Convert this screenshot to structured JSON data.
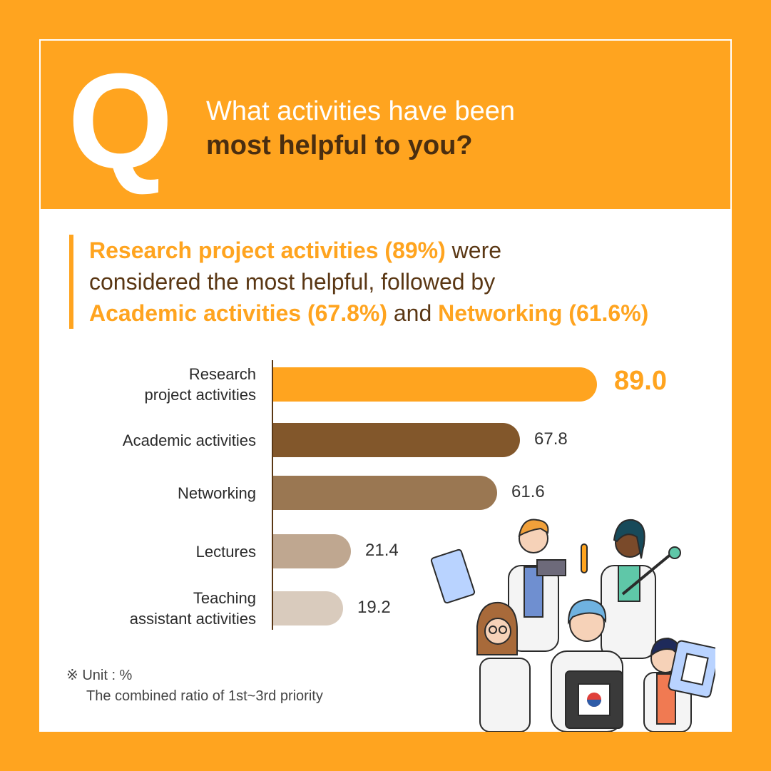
{
  "header": {
    "q_letter": "Q",
    "question_line1": "What activities have been",
    "question_line2": "most helpful to you?"
  },
  "summary": {
    "line1_highlight": "Research project activities (89%)",
    "line1_rest": " were",
    "line2": "considered the most helpful, followed by",
    "line3_highlight1": "Academic activities (67.8%)",
    "line3_mid": " and ",
    "line3_highlight2": "Networking (61.6%)"
  },
  "chart_data": {
    "type": "bar",
    "orientation": "horizontal",
    "categories": [
      "Research\nproject activities",
      "Academic activities",
      "Networking",
      "Lectures",
      "Teaching\nassistant activities"
    ],
    "category_lines": [
      [
        "Research",
        "project activities"
      ],
      [
        "Academic activities"
      ],
      [
        "Networking"
      ],
      [
        "Lectures"
      ],
      [
        "Teaching",
        "assistant activities"
      ]
    ],
    "values": [
      89.0,
      67.8,
      61.6,
      21.4,
      19.2
    ],
    "value_labels": [
      "89.0",
      "67.8",
      "61.6",
      "21.4",
      "19.2"
    ],
    "colors": [
      "#ffa41f",
      "#82572b",
      "#9a7752",
      "#bfa790",
      "#d9cbbd"
    ],
    "xlim": [
      0,
      100
    ],
    "grid": false
  },
  "note": {
    "line1": "※ Unit : %",
    "line2": "The combined ratio of 1st~3rd priority"
  }
}
